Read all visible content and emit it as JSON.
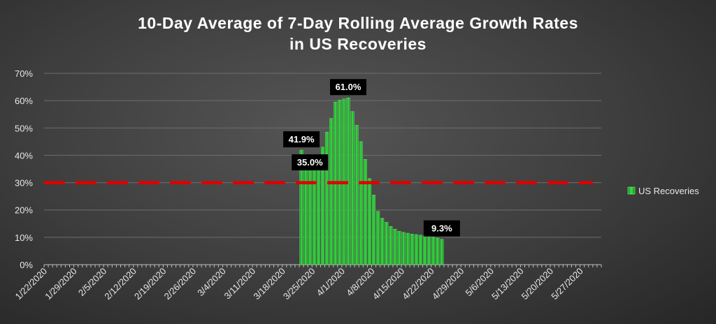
{
  "chart_data": {
    "type": "bar",
    "title_line1": "10-Day Average of 7-Day Rolling Average Growth Rates",
    "title_line2": "in US Recoveries",
    "xlabel": "",
    "ylabel": "",
    "ylim": [
      0,
      70
    ],
    "y_ticks": [
      "0%",
      "10%",
      "20%",
      "30%",
      "40%",
      "50%",
      "60%",
      "70%"
    ],
    "x_tick_labels": [
      "1/22/2020",
      "1/29/2020",
      "2/5/2020",
      "2/12/2020",
      "2/19/2020",
      "2/26/2020",
      "3/4/2020",
      "3/11/2020",
      "3/18/2020",
      "3/25/2020",
      "4/1/2020",
      "4/8/2020",
      "4/15/2020",
      "4/22/2020",
      "4/29/2020",
      "5/6/2020",
      "5/13/2020",
      "5/20/2020",
      "5/27/2020"
    ],
    "x_dates": [
      "2020-01-22",
      "2020-05-31"
    ],
    "grid": true,
    "legend_position": "right",
    "series": [
      {
        "name": "US Recoveries",
        "color": "#22c232",
        "x_start": "2020-03-22",
        "values": [
          41.9,
          38.0,
          35.0,
          36.5,
          39.0,
          43.0,
          48.5,
          53.5,
          59.5,
          60.2,
          60.6,
          61.0,
          56.0,
          51.0,
          45.0,
          38.5,
          31.5,
          25.5,
          19.5,
          17.0,
          15.5,
          14.0,
          13.0,
          12.2,
          11.8,
          11.5,
          11.2,
          11.0,
          10.8,
          10.6,
          10.4,
          10.1,
          9.7,
          9.3
        ]
      }
    ],
    "reference_line": {
      "value": 30,
      "color": "#e00000",
      "style": "dashed"
    },
    "data_labels": [
      {
        "x": "2020-03-22",
        "text": "41.9%"
      },
      {
        "x": "2020-03-24",
        "text": "35.0%"
      },
      {
        "x": "2020-04-02",
        "text": "61.0%"
      },
      {
        "x": "2020-04-24",
        "text": "9.3%"
      }
    ]
  }
}
